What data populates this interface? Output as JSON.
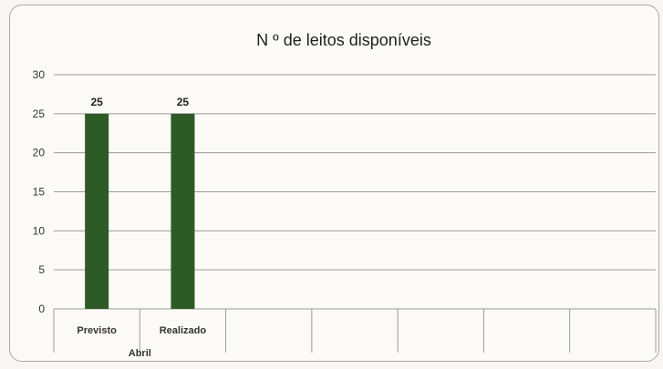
{
  "chart_data": {
    "type": "bar",
    "title": "N º de leitos disponíveis",
    "categories": [
      "Previsto",
      "Realizado",
      "",
      "",
      "",
      "",
      ""
    ],
    "group_label": "Abril",
    "series": [
      {
        "values": [
          25,
          25,
          null,
          null,
          null,
          null,
          null
        ],
        "color": "#2e5a25"
      }
    ],
    "data_labels": [
      "25",
      "25"
    ],
    "ylim": [
      0,
      30
    ],
    "yticks": [
      0,
      5,
      10,
      15,
      20,
      25,
      30
    ],
    "grid": true,
    "xlabel": "",
    "ylabel": ""
  }
}
